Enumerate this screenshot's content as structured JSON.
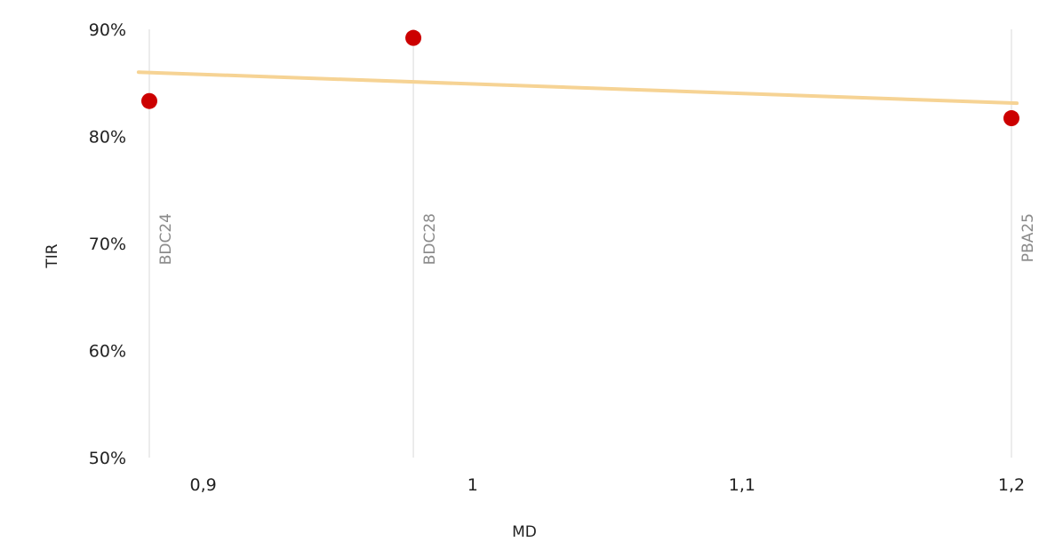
{
  "chart_data": {
    "type": "scatter",
    "xlabel": "MD",
    "ylabel": "TIR",
    "xlim": [
      0.88,
      1.205
    ],
    "ylim": [
      0.5,
      0.9
    ],
    "x_ticks": [
      {
        "value": 0.9,
        "label": "0,9"
      },
      {
        "value": 1.0,
        "label": "1"
      },
      {
        "value": 1.1,
        "label": "1,1"
      },
      {
        "value": 1.2,
        "label": "1,2"
      }
    ],
    "y_ticks": [
      {
        "value": 0.5,
        "label": "50%"
      },
      {
        "value": 0.6,
        "label": "60%"
      },
      {
        "value": 0.7,
        "label": "70%"
      },
      {
        "value": 0.8,
        "label": "80%"
      },
      {
        "value": 0.9,
        "label": "90%"
      }
    ],
    "points": [
      {
        "label": "BDC24",
        "x": 0.88,
        "y": 0.833
      },
      {
        "label": "BDC28",
        "x": 0.978,
        "y": 0.892
      },
      {
        "label": "PBA25",
        "x": 1.2,
        "y": 0.817
      }
    ],
    "trendline": {
      "x": [
        0.876,
        1.202
      ],
      "y": [
        0.86,
        0.831
      ]
    },
    "grid": "vertical lines at each point",
    "colors": {
      "points": "#cc0000",
      "trendline": "#f6d394",
      "guides": "#e6e6e6"
    }
  }
}
